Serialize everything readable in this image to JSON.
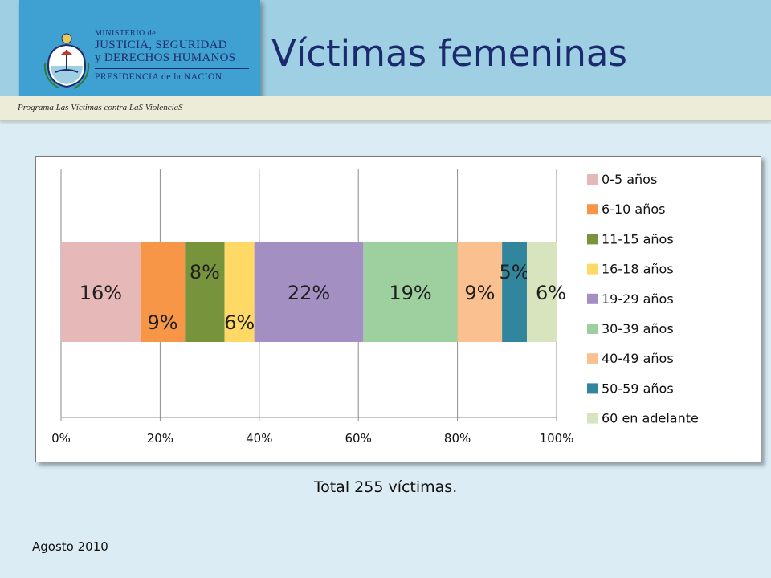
{
  "header": {
    "ministry_line1": "MINISTERIO de",
    "ministry_line2": "JUSTICIA, SEGURIDAD",
    "ministry_line3": "y DERECHOS HUMANOS",
    "ministry_line4": "PRESIDENCIA de la NACION",
    "program": "Programa Las Víctimas contra LaS ViolenciaS"
  },
  "title": "Víctimas femeninas",
  "footer": {
    "total": "Total 255 víctimas.",
    "date": "Agosto 2010"
  },
  "chart_data": {
    "type": "bar",
    "orientation": "horizontal",
    "stacked": "100%",
    "title": "",
    "xlabel": "",
    "ylabel": "",
    "xlim": [
      0,
      100
    ],
    "x_ticks": [
      "0%",
      "20%",
      "40%",
      "60%",
      "80%",
      "100%"
    ],
    "grid": "vertical",
    "legend_position": "right",
    "series": [
      {
        "name": "0-5 años",
        "value": 16,
        "label": "16%",
        "color": "#e6b9b8"
      },
      {
        "name": "6-10 años",
        "value": 9,
        "label": "9%",
        "color": "#f79646"
      },
      {
        "name": "11-15 años",
        "value": 8,
        "label": "8%",
        "color": "#77933c"
      },
      {
        "name": "16-18 años",
        "value": 6,
        "label": "6%",
        "color": "#ffd966"
      },
      {
        "name": "19-29 años",
        "value": 22,
        "label": "22%",
        "color": "#a48fc2"
      },
      {
        "name": "30-39 años",
        "value": 19,
        "label": "19%",
        "color": "#9dcf9f"
      },
      {
        "name": "40-49 años",
        "value": 9,
        "label": "9%",
        "color": "#fac090"
      },
      {
        "name": "50-59 años",
        "value": 5,
        "label": "5%",
        "color": "#31859c"
      },
      {
        "name": "60 en adelante",
        "value": 6,
        "label": "6%",
        "color": "#d7e4bd"
      }
    ]
  }
}
